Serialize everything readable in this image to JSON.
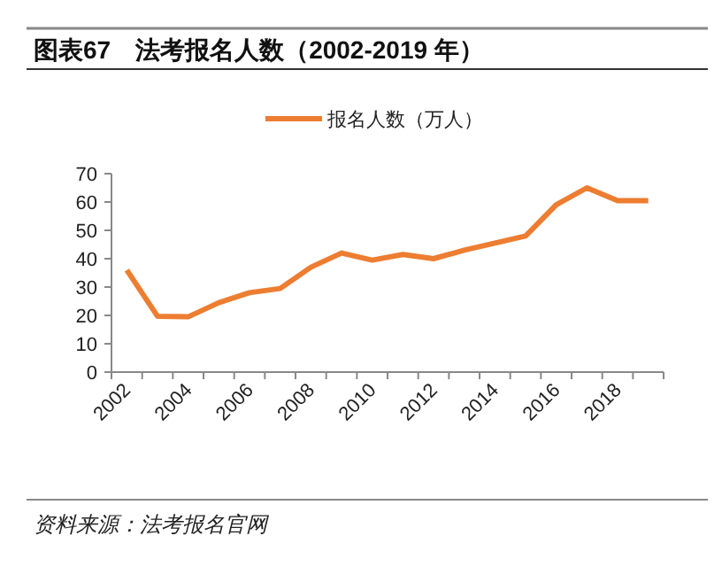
{
  "chart_data": {
    "type": "line",
    "title": "图表67　法考报名人数（2002-2019 年）",
    "categories": [
      "2002",
      null,
      "2004",
      null,
      "2006",
      null,
      "2008",
      null,
      "2010",
      null,
      "2012",
      null,
      "2014",
      null,
      "2016",
      null,
      "2018",
      null
    ],
    "series": [
      {
        "name": "报名人数（万人）",
        "color": "#ed7d31",
        "values": [
          36,
          19.7,
          19.5,
          24.5,
          28,
          29.5,
          37,
          42,
          39.5,
          41.5,
          40,
          43,
          45.5,
          48,
          59,
          65,
          60.5,
          60.5
        ]
      }
    ],
    "ylim": [
      0,
      70
    ],
    "yticks": [
      0,
      10,
      20,
      30,
      40,
      50,
      60,
      70
    ],
    "grid": false,
    "legend": "top",
    "marker": "none",
    "line_style": "solid",
    "annotations": [
      "资料来源：法考报名官网"
    ]
  }
}
